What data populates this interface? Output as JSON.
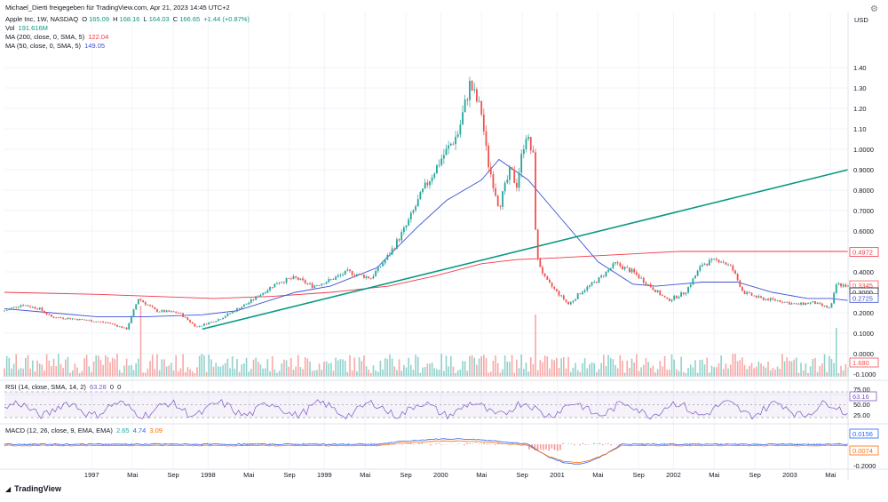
{
  "attribution": "Michael_Dierti freigegeben für TradingView.com, Apr 21, 2023 14:45 UTC+2",
  "legend": {
    "symbol": "Apple Inc, 1W, NASDAQ",
    "ohlc": {
      "o_label": "O",
      "o": "165.09",
      "h_label": "H",
      "h": "168.16",
      "l_label": "L",
      "l": "164.03",
      "c_label": "C",
      "c": "166.65",
      "change": "+1.44 (+0.87%)"
    },
    "vol_label": "Vol",
    "vol": "191.616M",
    "ma200_label": "MA (200, close, 0, SMA, 5)",
    "ma200": "122.04",
    "ma50_label": "MA (50, close, 0, SMA, 5)",
    "ma50": "149.05"
  },
  "rsi_legend": {
    "label": "RSI (14, close, SMA, 14, 2)",
    "v1": "63.28",
    "v2": "0",
    "v3": "0"
  },
  "macd_legend": {
    "label": "MACD (12, 26, close, 9, EMA, EMA)",
    "v1": "2.65",
    "v2": "4.74",
    "v3": "3.09"
  },
  "currency": "USD",
  "footer": {
    "logo": "TradingView"
  },
  "colors": {
    "up": "#26a69a",
    "down": "#ef5350",
    "ma200": "#f23645",
    "ma50": "#3f51d1",
    "trend": "#089981",
    "rsi": "#7e57c2",
    "macd": "#2962ff",
    "signal": "#ff6d00"
  },
  "chart_data": {
    "type": "candlestick",
    "price_axis_ticks": [
      "1.40",
      "1.30",
      "1.20",
      "1.10",
      "1.0000",
      "0.9000",
      "0.8000",
      "0.7000",
      "0.6000",
      "0.5000",
      "0.4000",
      "0.3000",
      "0.2000",
      "0.1000",
      "0.0000",
      "-0.1000",
      "-0.2000"
    ],
    "time_axis_labels": [
      "1997",
      "Mai",
      "Sep",
      "1998",
      "Mai",
      "Sep",
      "1999",
      "Mai",
      "Sep",
      "2000",
      "Mai",
      "Sep",
      "2001",
      "Mai",
      "Sep",
      "2002",
      "Mai",
      "Sep",
      "2003",
      "Mai"
    ],
    "price_badges": [
      {
        "value": "0.4972",
        "color": "#f23645"
      },
      {
        "value": "0.3345",
        "color": "#ef5350"
      },
      {
        "value": "0.3000",
        "color": "#131722"
      },
      {
        "value": "0.2725",
        "color": "#3f51d1"
      },
      {
        "value": "1.680",
        "color": "#ef5350"
      }
    ],
    "rsi_axis_ticks": [
      "75.00",
      "63.16",
      "50.00",
      "25.00"
    ],
    "rsi_badge": "63.16",
    "macd_axis_ticks": [
      "0.0156",
      "0.0074",
      "-0.2000"
    ],
    "macd_badges": [
      {
        "value": "0.0156",
        "color": "#2962ff"
      },
      {
        "value": "0.0074",
        "color": "#ff6d00"
      }
    ],
    "ma200_points": [
      [
        1996.2,
        0.3
      ],
      [
        1997,
        0.29
      ],
      [
        1998,
        0.27
      ],
      [
        1998.5,
        0.28
      ],
      [
        1999,
        0.3
      ],
      [
        1999.5,
        0.33
      ],
      [
        1999.9,
        0.38
      ],
      [
        2000.3,
        0.44
      ],
      [
        2000.6,
        0.46
      ],
      [
        2001,
        0.47
      ],
      [
        2002,
        0.5
      ],
      [
        2003,
        0.5
      ],
      [
        2003.45,
        0.5
      ]
    ],
    "ma50_points": [
      [
        1996.2,
        0.22
      ],
      [
        1996.6,
        0.2
      ],
      [
        1997,
        0.18
      ],
      [
        1997.4,
        0.18
      ],
      [
        1997.9,
        0.19
      ],
      [
        1998.2,
        0.21
      ],
      [
        1998.7,
        0.3
      ],
      [
        1999,
        0.33
      ],
      [
        1999.4,
        0.42
      ],
      [
        1999.75,
        0.62
      ],
      [
        2000,
        0.75
      ],
      [
        2000.3,
        0.85
      ],
      [
        2000.45,
        0.95
      ],
      [
        2000.7,
        0.85
      ],
      [
        2001,
        0.65
      ],
      [
        2001.3,
        0.45
      ],
      [
        2001.6,
        0.34
      ],
      [
        2001.8,
        0.33
      ],
      [
        2002.2,
        0.35
      ],
      [
        2002.5,
        0.35
      ],
      [
        2002.8,
        0.3
      ],
      [
        2003.1,
        0.27
      ],
      [
        2003.3,
        0.27
      ],
      [
        2003.45,
        0.26
      ]
    ],
    "trendline": [
      [
        1997.9,
        0.12
      ],
      [
        2003.45,
        0.9
      ]
    ],
    "candle_path": [
      [
        1996.2,
        0.21
      ],
      [
        1996.35,
        0.24
      ],
      [
        1996.5,
        0.22
      ],
      [
        1996.6,
        0.18
      ],
      [
        1996.8,
        0.17
      ],
      [
        1996.95,
        0.16
      ],
      [
        1997.1,
        0.15
      ],
      [
        1997.25,
        0.12
      ],
      [
        1997.35,
        0.27
      ],
      [
        1997.5,
        0.21
      ],
      [
        1997.7,
        0.2
      ],
      [
        1997.85,
        0.13
      ],
      [
        1998.05,
        0.17
      ],
      [
        1998.3,
        0.25
      ],
      [
        1998.55,
        0.35
      ],
      [
        1998.7,
        0.37
      ],
      [
        1998.85,
        0.33
      ],
      [
        1999.0,
        0.36
      ],
      [
        1999.15,
        0.4
      ],
      [
        1999.35,
        0.37
      ],
      [
        1999.5,
        0.48
      ],
      [
        1999.65,
        0.62
      ],
      [
        1999.8,
        0.8
      ],
      [
        1999.95,
        0.95
      ],
      [
        2000.1,
        1.08
      ],
      [
        2000.2,
        1.32
      ],
      [
        2000.3,
        1.18
      ],
      [
        2000.35,
        0.95
      ],
      [
        2000.45,
        0.72
      ],
      [
        2000.55,
        0.9
      ],
      [
        2000.6,
        0.82
      ],
      [
        2000.68,
        1.08
      ],
      [
        2000.75,
        0.95
      ],
      [
        2000.77,
        0.48
      ],
      [
        2000.85,
        0.36
      ],
      [
        2000.95,
        0.3
      ],
      [
        2001.05,
        0.24
      ],
      [
        2001.15,
        0.3
      ],
      [
        2001.3,
        0.36
      ],
      [
        2001.45,
        0.44
      ],
      [
        2001.6,
        0.4
      ],
      [
        2001.75,
        0.33
      ],
      [
        2001.9,
        0.26
      ],
      [
        2002.05,
        0.3
      ],
      [
        2002.2,
        0.44
      ],
      [
        2002.35,
        0.46
      ],
      [
        2002.45,
        0.42
      ],
      [
        2002.55,
        0.3
      ],
      [
        2002.7,
        0.27
      ],
      [
        2002.85,
        0.26
      ],
      [
        2003.0,
        0.24
      ],
      [
        2003.15,
        0.25
      ],
      [
        2003.3,
        0.22
      ],
      [
        2003.35,
        0.34
      ],
      [
        2003.45,
        0.33
      ]
    ]
  }
}
